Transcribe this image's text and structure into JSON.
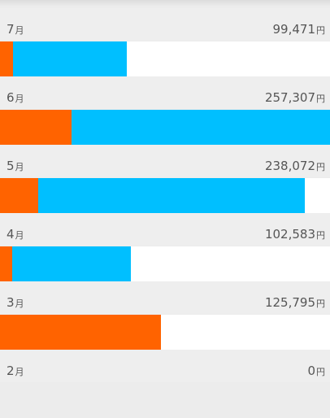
{
  "colors": {
    "background": "#ececec",
    "expense_orange": "#ff6300",
    "expense_blue": "#00bfff",
    "bar_track": "#ffffff",
    "text": "#555555"
  },
  "months": [
    {
      "month": "7",
      "month_unit": "月",
      "amount": "99,471",
      "amount_unit": "円",
      "orange_fraction": 0.04,
      "blue_fraction": 0.345
    },
    {
      "month": "6",
      "month_unit": "月",
      "amount": "257,307",
      "amount_unit": "円",
      "orange_fraction": 0.217,
      "blue_fraction": 0.783
    },
    {
      "month": "5",
      "month_unit": "月",
      "amount": "238,072",
      "amount_unit": "円",
      "orange_fraction": 0.116,
      "blue_fraction": 0.808
    },
    {
      "month": "4",
      "month_unit": "月",
      "amount": "102,583",
      "amount_unit": "円",
      "orange_fraction": 0.037,
      "blue_fraction": 0.36
    },
    {
      "month": "3",
      "month_unit": "月",
      "amount": "125,795",
      "amount_unit": "円",
      "orange_fraction": 0.488,
      "blue_fraction": 0.0
    },
    {
      "month": "2",
      "month_unit": "月",
      "amount": "0",
      "amount_unit": "円",
      "orange_fraction": 0.0,
      "blue_fraction": 0.0
    }
  ]
}
